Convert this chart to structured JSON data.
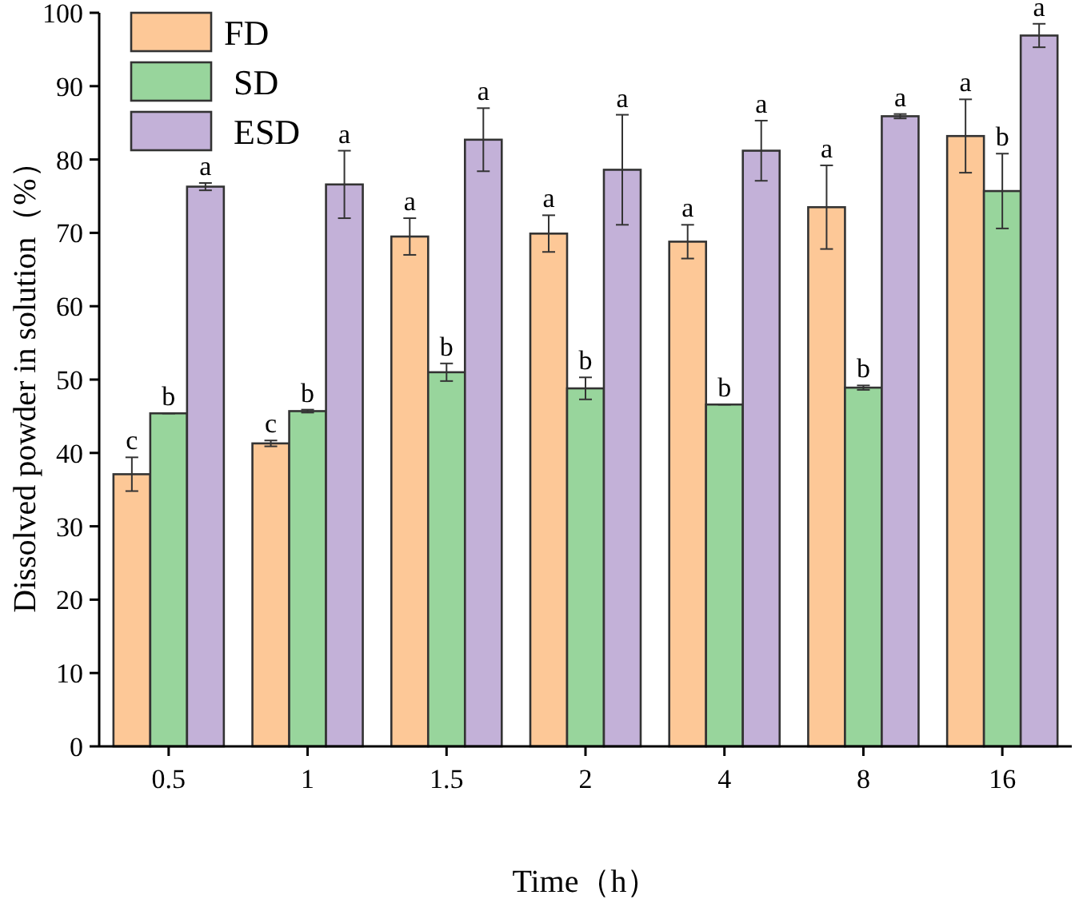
{
  "chart_data": {
    "type": "bar",
    "xlabel": "Time（h）",
    "ylabel": "Dissolved powder in solution（%）",
    "categories": [
      "0.5",
      "1",
      "1.5",
      "2",
      "4",
      "8",
      "16"
    ],
    "ylim": [
      0,
      100
    ],
    "yticks": [
      0,
      10,
      20,
      30,
      40,
      50,
      60,
      70,
      80,
      90,
      100
    ],
    "grid": false,
    "legend": "top left",
    "series": [
      {
        "name": "FD",
        "color": "#fdc897",
        "values": [
          37.1,
          41.3,
          69.5,
          69.9,
          68.8,
          73.5,
          83.2
        ],
        "errors": [
          2.3,
          0.4,
          2.5,
          2.5,
          2.3,
          5.7,
          5.0
        ],
        "value_labels": [
          "c",
          "c",
          "a",
          "a",
          "a",
          "a",
          "a"
        ]
      },
      {
        "name": "SD",
        "color": "#98d59c",
        "values": [
          45.4,
          45.7,
          51.0,
          48.8,
          46.6,
          48.9,
          75.7
        ],
        "errors": [
          0,
          0.2,
          1.2,
          1.5,
          0,
          0.3,
          5.1
        ],
        "value_labels": [
          "b",
          "b",
          "b",
          "b",
          "b",
          "b",
          "b"
        ]
      },
      {
        "name": "ESD",
        "color": "#c3b1d8",
        "values": [
          76.3,
          76.6,
          82.7,
          78.6,
          81.2,
          85.9,
          96.9
        ],
        "errors": [
          0.5,
          4.6,
          4.3,
          7.5,
          4.1,
          0.3,
          1.6
        ],
        "value_labels": [
          "a",
          "a",
          "a",
          "a",
          "a",
          "a",
          "a"
        ]
      }
    ]
  }
}
